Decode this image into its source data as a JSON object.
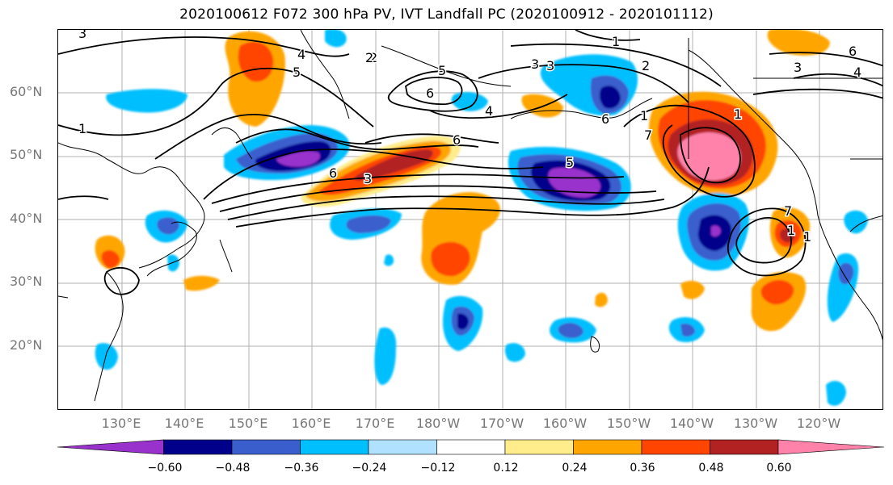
{
  "title": "2020100612 F072 300 hPa PV, IVT Landfall PC (2020100912 - 2020101112)",
  "lat_labels": [
    "60°N",
    "50°N",
    "40°N",
    "30°N",
    "20°N"
  ],
  "lon_labels": [
    "130°E",
    "140°E",
    "150°E",
    "160°E",
    "170°E",
    "180°W",
    "170°W",
    "160°W",
    "150°W",
    "140°W",
    "130°W",
    "120°W"
  ],
  "colorbar": {
    "colors": [
      "#9932CC",
      "#00008B",
      "#3A5FCD",
      "#00BFFF",
      "#B0E2FF",
      "#FFFFFF",
      "#FFEC8B",
      "#FFA500",
      "#FF4500",
      "#B22222",
      "#FF82AB"
    ],
    "tick_labels": [
      "−0.60",
      "−0.48",
      "−0.36",
      "−0.24",
      "−0.12",
      "0.12",
      "0.24",
      "0.36",
      "0.48",
      "0.60"
    ]
  },
  "contour_labels": [
    "3",
    "1",
    "2",
    "1",
    "5",
    "6",
    "4",
    "3",
    "5",
    "6",
    "3",
    "2",
    "1",
    "6",
    "5",
    "4",
    "2",
    "1",
    "6",
    "7",
    "6",
    "7",
    "3",
    "4",
    "1",
    "1",
    "3"
  ]
}
